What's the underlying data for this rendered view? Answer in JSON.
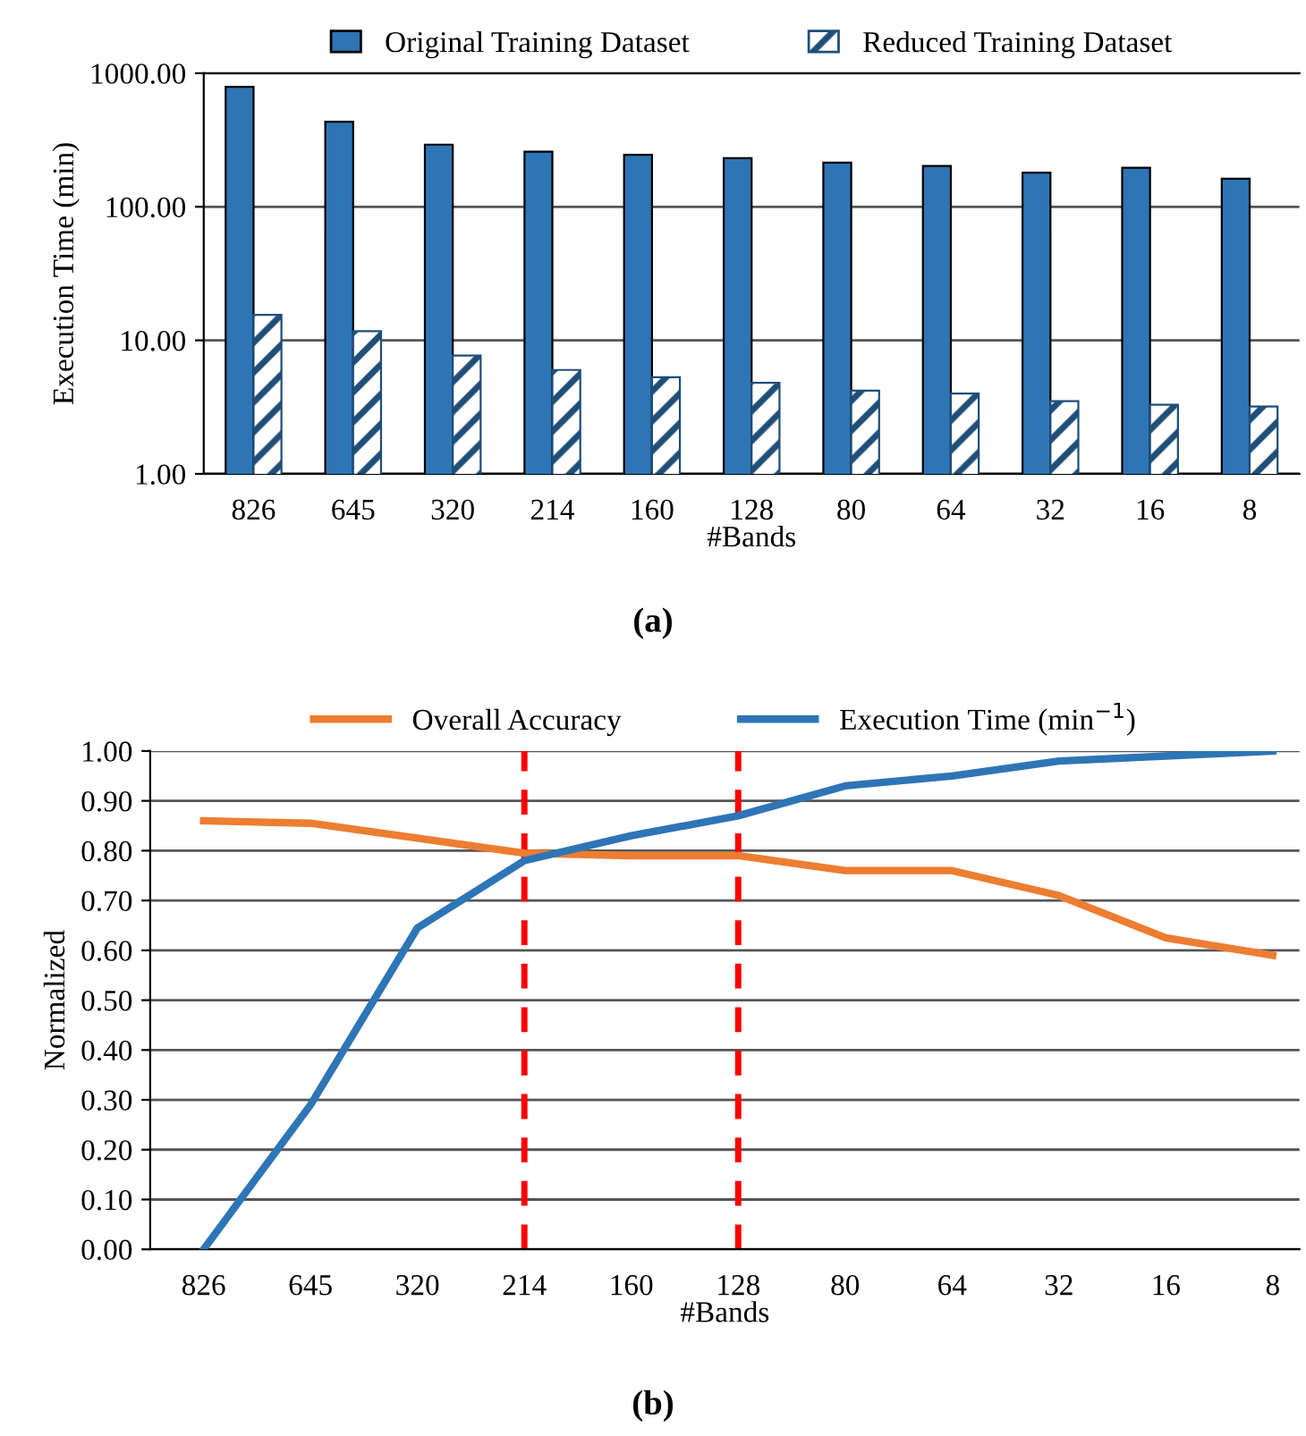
{
  "chart_data": [
    {
      "type": "bar",
      "categories": [
        "826",
        "645",
        "320",
        "214",
        "160",
        "128",
        "80",
        "64",
        "32",
        "16",
        "8"
      ],
      "xlabel": "#Bands",
      "ylabel": "Execution Time (min)",
      "log": "y",
      "ylim": [
        1,
        1000
      ],
      "yticks": [
        {
          "value": 1,
          "label": "1.00"
        },
        {
          "value": 10,
          "label": "10.00"
        },
        {
          "value": 100,
          "label": "100.00"
        },
        {
          "value": 1000,
          "label": "1000.00"
        }
      ],
      "grid": "y",
      "legend": "top",
      "series": [
        {
          "name": "Original Training Dataset",
          "color": "#2e75b6",
          "values": [
            791,
            434,
            292,
            259,
            245,
            231,
            214,
            202,
            180,
            196,
            162
          ]
        },
        {
          "name": "Reduced Training Dataset",
          "color": "#1f4e79",
          "values": [
            15.5,
            11.7,
            7.7,
            6.0,
            5.3,
            4.8,
            4.2,
            4.0,
            3.5,
            3.3,
            3.2
          ]
        }
      ],
      "annotations": [
        "(a)"
      ]
    },
    {
      "type": "line",
      "categories": [
        "826",
        "645",
        "320",
        "214",
        "160",
        "128",
        "80",
        "64",
        "32",
        "16",
        "8"
      ],
      "xlabel": "#Bands",
      "ylabel": "Normalized",
      "ylim": [
        0,
        1
      ],
      "yticks": [
        {
          "value": 0,
          "label": "0.00"
        },
        {
          "value": 0.1,
          "label": "0.10"
        },
        {
          "value": 0.2,
          "label": "0.20"
        },
        {
          "value": 0.3,
          "label": "0.30"
        },
        {
          "value": 0.4,
          "label": "0.40"
        },
        {
          "value": 0.5,
          "label": "0.50"
        },
        {
          "value": 0.6,
          "label": "0.60"
        },
        {
          "value": 0.7,
          "label": "0.70"
        },
        {
          "value": 0.8,
          "label": "0.80"
        },
        {
          "value": 0.9,
          "label": "0.90"
        },
        {
          "value": 1,
          "label": "1.00"
        }
      ],
      "grid": "y",
      "legend": "top",
      "marker": "none",
      "line_style": "solid",
      "series": [
        {
          "name": "Overall Accuracy",
          "color": "#ed7d31",
          "values": [
            0.86,
            0.855,
            0.825,
            0.795,
            0.79,
            0.79,
            0.76,
            0.76,
            0.71,
            0.625,
            0.59
          ]
        },
        {
          "name": "Execution Time (min$^{−1}$)",
          "color": "#2e75b6",
          "values": [
            0.0,
            0.29,
            0.645,
            0.78,
            0.83,
            0.87,
            0.93,
            0.95,
            0.98,
            0.99,
            1.0
          ]
        }
      ],
      "ref_lines": [
        {
          "axis": "x",
          "value": "214",
          "color": "#ff0000",
          "line_style": "dashed"
        },
        {
          "axis": "x",
          "value": "128",
          "color": "#ff0000",
          "line_style": "dashed"
        }
      ],
      "annotations": [
        "(b)"
      ]
    }
  ]
}
